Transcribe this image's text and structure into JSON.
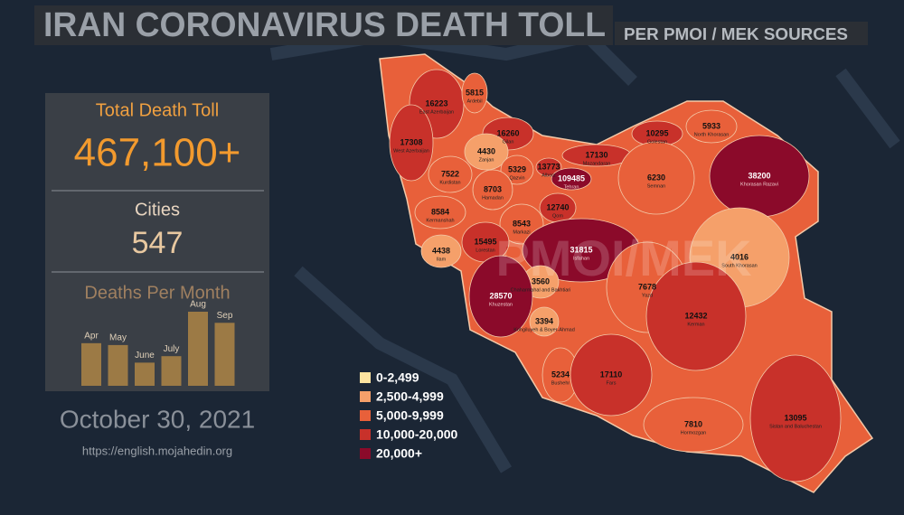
{
  "header": {
    "title": "IRAN CORONAVIRUS DEATH TOLL",
    "subtitle": "PER PMOI / MEK SOURCES"
  },
  "panel": {
    "total_label": "Total Death Toll",
    "total": "467,100+",
    "cities_label": "Cities",
    "cities": 547,
    "chart_title": "Deaths Per Month"
  },
  "deaths_per_month": {
    "type": "bar",
    "categories": [
      "Apr",
      "May",
      "June",
      "July",
      "Aug",
      "Sep"
    ],
    "values": [
      46,
      44,
      25,
      32,
      80,
      68
    ],
    "color": "#9c7a45"
  },
  "date": "October 30, 2021",
  "url": "https://english.mojahedin.org",
  "watermark": "PMOI/MEK",
  "legend": [
    {
      "label": "0-2,499",
      "color": "#fde4a0"
    },
    {
      "label": "2,500-4,999",
      "color": "#f5a06a"
    },
    {
      "label": "5,000-9,999",
      "color": "#e8603a"
    },
    {
      "label": "10,000-20,000",
      "color": "#c8312a"
    },
    {
      "label": "20,000+",
      "color": "#8b0a2a"
    }
  ],
  "provinces": [
    {
      "name": "East Azerbaijan",
      "deaths": 16223,
      "color": "#c8312a"
    },
    {
      "name": "Ardebil",
      "deaths": 5815,
      "color": "#e8603a"
    },
    {
      "name": "West Azerbaijan",
      "deaths": 17308,
      "color": "#c8312a"
    },
    {
      "name": "Gilan",
      "deaths": 16260,
      "color": "#c8312a"
    },
    {
      "name": "Zanjan",
      "deaths": 4430,
      "color": "#f5a06a"
    },
    {
      "name": "Alborz",
      "deaths": 13773,
      "color": "#c8312a"
    },
    {
      "name": "Tehran",
      "deaths": 109485,
      "color": "#8b0a2a"
    },
    {
      "name": "Mazandaran",
      "deaths": 17130,
      "color": "#c8312a"
    },
    {
      "name": "Golestan",
      "deaths": 10295,
      "color": "#c8312a"
    },
    {
      "name": "North Khorasan",
      "deaths": 5933,
      "color": "#e8603a"
    },
    {
      "name": "Khorasan Razavi",
      "deaths": 38200,
      "color": "#8b0a2a"
    },
    {
      "name": "Semnan",
      "deaths": 6230,
      "color": "#e8603a"
    },
    {
      "name": "Kurdistan",
      "deaths": 7522,
      "color": "#e8603a"
    },
    {
      "name": "Qazvin",
      "deaths": 5329,
      "color": "#e8603a"
    },
    {
      "name": "Hamadan",
      "deaths": 8703,
      "color": "#e8603a"
    },
    {
      "name": "Qom",
      "deaths": 12740,
      "color": "#c8312a"
    },
    {
      "name": "Kermanshah",
      "deaths": 8584,
      "color": "#e8603a"
    },
    {
      "name": "Markazi",
      "deaths": 8543,
      "color": "#e8603a"
    },
    {
      "name": "Ilam",
      "deaths": 4438,
      "color": "#f5a06a"
    },
    {
      "name": "Lorestan",
      "deaths": 15495,
      "color": "#c8312a"
    },
    {
      "name": "Isfahan",
      "deaths": 31815,
      "color": "#8b0a2a"
    },
    {
      "name": "South Khorasan",
      "deaths": 4016,
      "color": "#f5a06a"
    },
    {
      "name": "Chaharmahal and Bakhtiari",
      "deaths": 3560,
      "color": "#f5a06a"
    },
    {
      "name": "Khuzestan",
      "deaths": 28570,
      "color": "#8b0a2a"
    },
    {
      "name": "Yazd",
      "deaths": 7678,
      "color": "#e8603a"
    },
    {
      "name": "Kohgiluyeh & Boyer-Ahmad",
      "deaths": 3394,
      "color": "#f5a06a"
    },
    {
      "name": "Kerman",
      "deaths": 12432,
      "color": "#c8312a"
    },
    {
      "name": "Bushehr",
      "deaths": 5234,
      "color": "#e8603a"
    },
    {
      "name": "Fars",
      "deaths": 17110,
      "color": "#c8312a"
    },
    {
      "name": "Hormozgan",
      "deaths": 7810,
      "color": "#e8603a"
    },
    {
      "name": "Sistan and Baluchestan",
      "deaths": 13095,
      "color": "#c8312a"
    }
  ]
}
